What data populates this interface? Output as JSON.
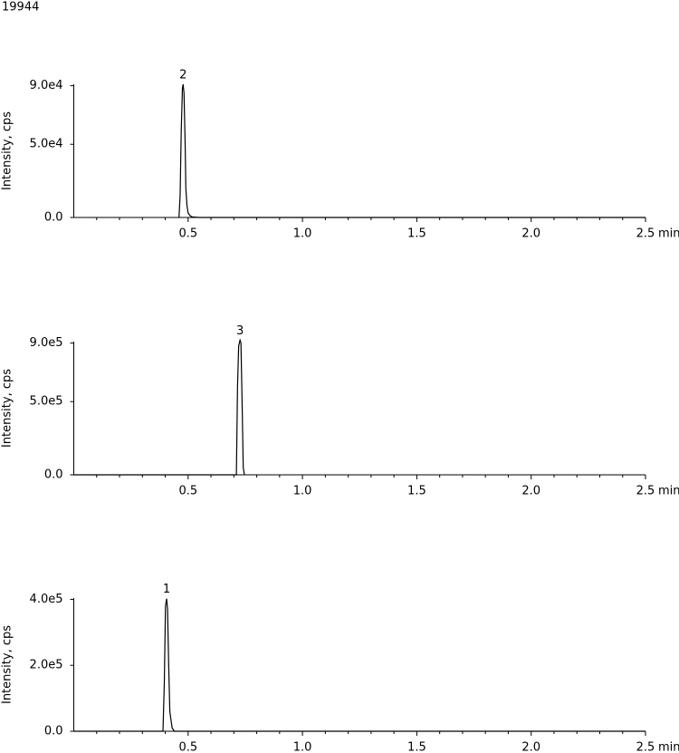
{
  "label": "19944",
  "chart_data": [
    {
      "type": "line",
      "ylabel": "Intensity, cps",
      "xlabel": "min",
      "color": "#000000",
      "x": [
        0.46,
        0.465,
        0.47,
        0.475,
        0.478,
        0.482,
        0.487,
        0.49,
        0.495,
        0.5,
        0.51,
        0.52,
        0.55,
        2.5
      ],
      "values": [
        0,
        15000,
        60000,
        88000,
        91000,
        85000,
        50000,
        20000,
        8000,
        3000,
        1000,
        300,
        0,
        0
      ],
      "annotations": [
        {
          "text": "2",
          "x": 0.478,
          "y": 91000
        }
      ],
      "xlim": [
        0,
        2.5
      ],
      "ylim": [
        0,
        91000
      ],
      "xticks": [
        0.5,
        {
          "value": 1,
          "label": "1.0"
        },
        1.5,
        {
          "value": 2,
          "label": "2.0"
        },
        2.5
      ],
      "xminorticks": [
        0.1,
        0.2,
        0.3,
        0.4,
        0.6,
        0.7,
        0.8,
        0.9,
        1.1,
        1.2,
        1.3,
        1.4,
        1.6,
        1.7,
        1.8,
        1.9,
        2.1,
        2.2,
        2.3,
        2.4
      ],
      "yticks": [
        {
          "value": 0,
          "label": "0.0"
        },
        {
          "value": 50000,
          "label": "5.0e4"
        },
        {
          "value": 90000,
          "label": "9.0e4"
        }
      ]
    },
    {
      "type": "line",
      "ylabel": "Intensity, cps",
      "xlabel": "min",
      "color": "#000000",
      "x": [
        0,
        0.711,
        0.716,
        0.721,
        0.727,
        0.731,
        0.736,
        0.741,
        0.746
      ],
      "values": [
        0,
        0,
        600000,
        880000,
        920000,
        900000,
        500000,
        50000,
        0
      ],
      "annotations": [
        {
          "text": "3",
          "x": 0.727,
          "y": 920000
        }
      ],
      "xlim": [
        0,
        2.5
      ],
      "ylim": [
        0,
        910000
      ],
      "xticks": [
        0.5,
        {
          "value": 1,
          "label": "1.0"
        },
        1.5,
        {
          "value": 2,
          "label": "2.0"
        },
        2.5
      ],
      "xminorticks": [
        0.1,
        0.2,
        0.3,
        0.4,
        0.6,
        0.7,
        0.8,
        0.9,
        1.1,
        1.2,
        1.3,
        1.4,
        1.6,
        1.7,
        1.8,
        1.9,
        2.1,
        2.2,
        2.3,
        2.4
      ],
      "yticks": [
        {
          "value": 0,
          "label": "0.0"
        },
        {
          "value": 500000,
          "label": "5.0e5"
        },
        {
          "value": 900000,
          "label": "9.0e5"
        }
      ]
    },
    {
      "type": "line",
      "ylabel": "Intensity, cps",
      "xlabel": "min",
      "color": "#000000",
      "x": [
        0,
        0.39,
        0.396,
        0.401,
        0.406,
        0.41,
        0.415,
        0.42,
        0.43,
        0.44,
        2.5
      ],
      "values": [
        0,
        0,
        150000,
        380000,
        402000,
        370000,
        200000,
        60000,
        10000,
        0,
        0
      ],
      "annotations": [
        {
          "text": "1",
          "x": 0.406,
          "y": 402000
        }
      ],
      "xlim": [
        0,
        2.5
      ],
      "ylim": [
        0,
        404000
      ],
      "xticks": [
        0.5,
        {
          "value": 1,
          "label": "1.0"
        },
        1.5,
        {
          "value": 2,
          "label": "2.0"
        },
        2.5
      ],
      "xminorticks": [
        0.1,
        0.2,
        0.3,
        0.4,
        0.6,
        0.7,
        0.8,
        0.9,
        1.1,
        1.2,
        1.3,
        1.4,
        1.6,
        1.7,
        1.8,
        1.9,
        2.1,
        2.2,
        2.3,
        2.4
      ],
      "yticks": [
        {
          "value": 0,
          "label": "0.0"
        },
        {
          "value": 200000,
          "label": "2.0e5"
        },
        {
          "value": 400000,
          "label": "4.0e5"
        }
      ]
    }
  ]
}
